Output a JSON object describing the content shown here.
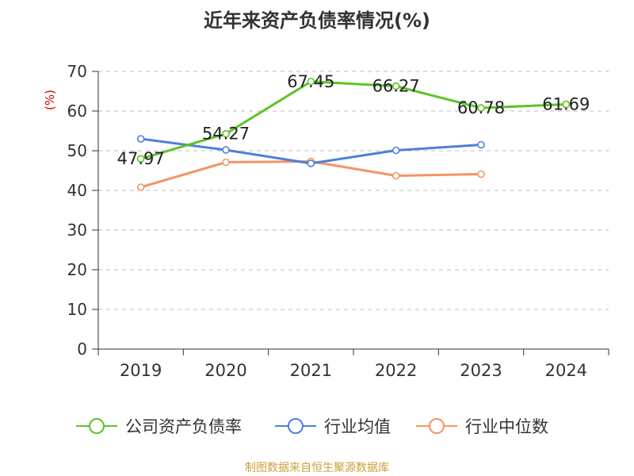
{
  "title": "近年来资产负债率情况(%)",
  "source": "制图数据来自恒生聚源数据库",
  "chart_data": {
    "type": "line",
    "title": "近年来资产负债率情况(%)",
    "ylabel": "(%)",
    "xlabel": "",
    "categories": [
      "2019",
      "2020",
      "2021",
      "2022",
      "2023",
      "2024"
    ],
    "ylim": [
      0,
      70
    ],
    "yticks": [
      0,
      10,
      20,
      30,
      40,
      50,
      60,
      70
    ],
    "grid": true,
    "legend_position": "bottom",
    "series": [
      {
        "name": "公司资产负债率",
        "color": "#5dc327",
        "values": [
          47.97,
          54.27,
          67.45,
          66.27,
          60.78,
          61.69
        ],
        "labels": [
          "47.97",
          "54.27",
          "67.45",
          "66.27",
          "60.78",
          "61.69"
        ]
      },
      {
        "name": "行业均值",
        "color": "#4d7fde",
        "values": [
          53.0,
          50.2,
          46.8,
          50.1,
          51.5,
          null
        ]
      },
      {
        "name": "行业中位数",
        "color": "#f59462",
        "values": [
          40.8,
          47.1,
          47.3,
          43.7,
          44.1,
          null
        ]
      }
    ]
  }
}
